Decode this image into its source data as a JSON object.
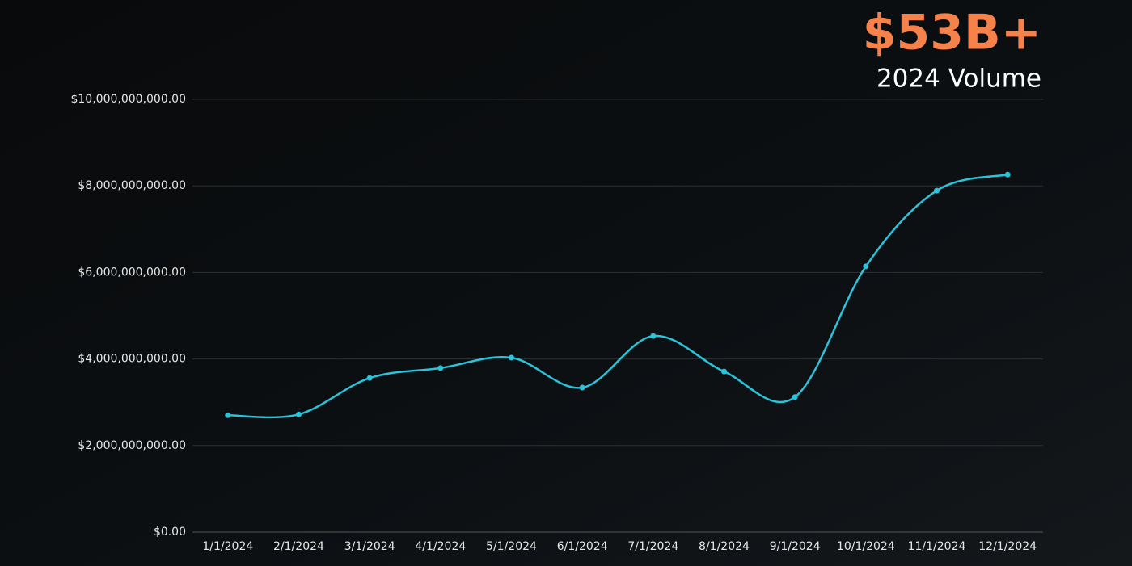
{
  "headline": "$53B+",
  "subtitle": "2024 Volume",
  "chart_data": {
    "type": "line",
    "categories": [
      "1/1/2024",
      "2/1/2024",
      "3/1/2024",
      "4/1/2024",
      "5/1/2024",
      "6/1/2024",
      "7/1/2024",
      "8/1/2024",
      "9/1/2024",
      "10/1/2024",
      "11/1/2024",
      "12/1/2024"
    ],
    "series": [
      {
        "color": "#2ac3da",
        "values": [
          2700000000,
          2720000000,
          3560000000,
          3790000000,
          4030000000,
          3340000000,
          4530000000,
          3710000000,
          3120000000,
          6140000000,
          7890000000,
          8260000000
        ]
      }
    ],
    "ylim": [
      0,
      10000000000
    ],
    "yticks": [
      {
        "value": 0,
        "label": "$0.00"
      },
      {
        "value": 2000000000,
        "label": "$2,000,000,000.00"
      },
      {
        "value": 4000000000,
        "label": "$4,000,000,000.00"
      },
      {
        "value": 6000000000,
        "label": "$6,000,000,000.00"
      },
      {
        "value": 8000000000,
        "label": "$8,000,000,000.00"
      },
      {
        "value": 10000000000,
        "label": "$10,000,000,000.00"
      }
    ],
    "grid": true
  }
}
